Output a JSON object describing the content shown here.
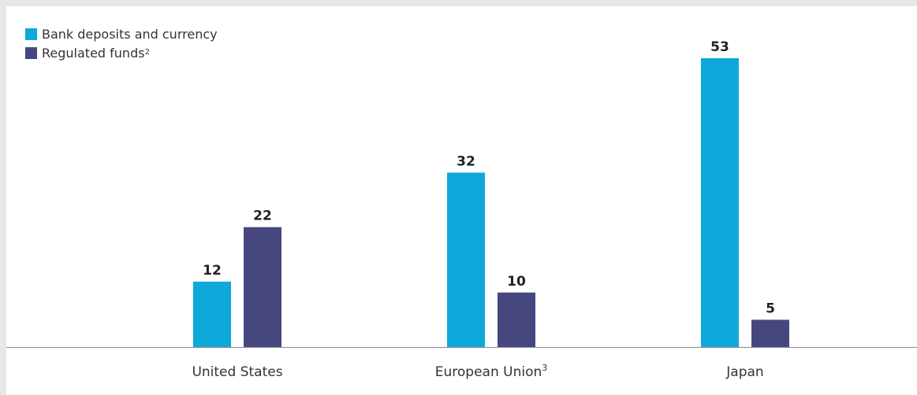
{
  "chart_data": {
    "type": "bar",
    "title": "",
    "xlabel": "",
    "ylabel": "",
    "categories": [
      "United States",
      "European Union",
      "Japan"
    ],
    "category_superscripts": [
      "",
      "3",
      ""
    ],
    "series": [
      {
        "name": "Bank deposits and currency",
        "superscript": "",
        "color": "#0ea8da",
        "values": [
          12,
          32,
          53
        ]
      },
      {
        "name": "Regulated funds",
        "superscript": "2",
        "color": "#474780",
        "values": [
          22,
          10,
          5
        ]
      }
    ],
    "ylim": [
      0,
      53
    ],
    "grid": false,
    "legend_position": "top-left",
    "axis_color": "#8a8a8a"
  }
}
